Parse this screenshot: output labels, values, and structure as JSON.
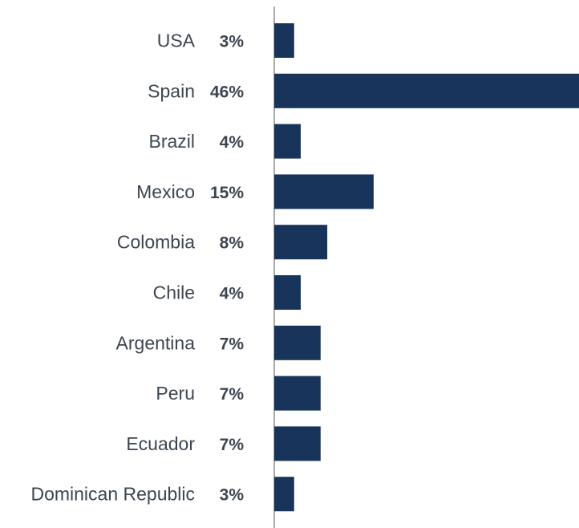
{
  "chart_data": {
    "type": "bar",
    "orientation": "horizontal",
    "categories": [
      "USA",
      "Spain",
      "Brazil",
      "Mexico",
      "Colombia",
      "Chile",
      "Argentina",
      "Peru",
      "Ecuador",
      "Dominican Republic"
    ],
    "values": [
      3,
      46,
      4,
      15,
      8,
      4,
      7,
      7,
      7,
      3
    ],
    "value_labels": [
      "3%",
      "46%",
      "4%",
      "15%",
      "8%",
      "4%",
      "7%",
      "7%",
      "7%",
      "3%"
    ],
    "unit": "%",
    "xlim": [
      0,
      46
    ],
    "grid": false,
    "legend": "none",
    "colors": {
      "bar": "#18345a",
      "axis": "#555555",
      "label": "#3d4650"
    }
  }
}
